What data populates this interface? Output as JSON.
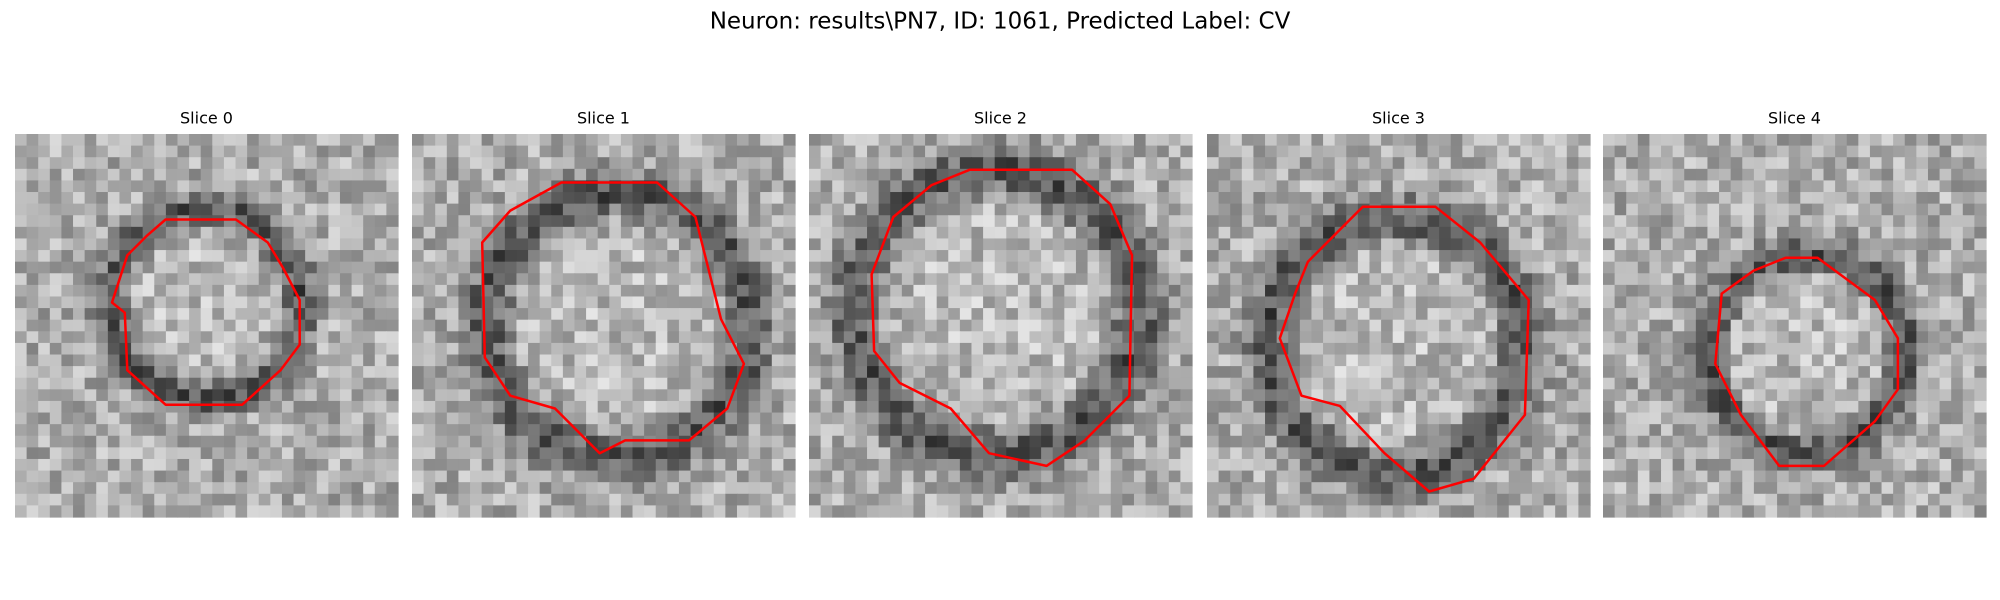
{
  "figure": {
    "title": "Neuron: results\\PN7, ID: 1061, Predicted Label: CV",
    "panels": [
      {
        "title": "Slice 0"
      },
      {
        "title": "Slice 1"
      },
      {
        "title": "Slice 2"
      },
      {
        "title": "Slice 3"
      },
      {
        "title": "Slice 4"
      }
    ]
  }
}
